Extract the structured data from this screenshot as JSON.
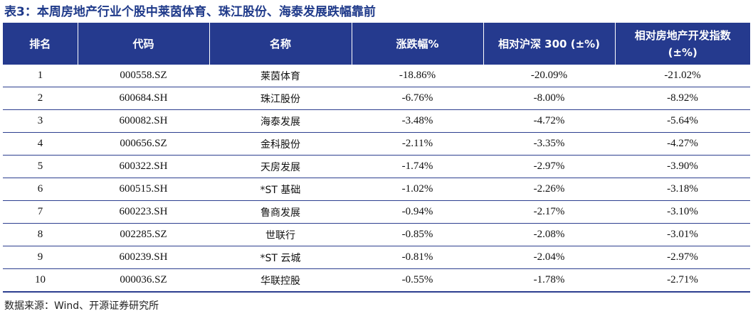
{
  "title": "表3：本周房地产行业个股中莱茵体育、珠江股份、海泰发展跌幅靠前",
  "table": {
    "headers": [
      "排名",
      "代码",
      "名称",
      "涨跌幅%",
      "相对沪深 300 (±%)",
      "相对房地产开发指数 (±%)"
    ],
    "rows": [
      {
        "rank": "1",
        "code": "000558.SZ",
        "name": "莱茵体育",
        "change": "-18.86%",
        "rel_hs300": "-20.09%",
        "rel_index": "-21.02%"
      },
      {
        "rank": "2",
        "code": "600684.SH",
        "name": "珠江股份",
        "change": "-6.76%",
        "rel_hs300": "-8.00%",
        "rel_index": "-8.92%"
      },
      {
        "rank": "3",
        "code": "600082.SH",
        "name": "海泰发展",
        "change": "-3.48%",
        "rel_hs300": "-4.72%",
        "rel_index": "-5.64%"
      },
      {
        "rank": "4",
        "code": "000656.SZ",
        "name": "金科股份",
        "change": "-2.11%",
        "rel_hs300": "-3.35%",
        "rel_index": "-4.27%"
      },
      {
        "rank": "5",
        "code": "600322.SH",
        "name": "天房发展",
        "change": "-1.74%",
        "rel_hs300": "-2.97%",
        "rel_index": "-3.90%"
      },
      {
        "rank": "6",
        "code": "600515.SH",
        "name": "*ST 基础",
        "change": "-1.02%",
        "rel_hs300": "-2.26%",
        "rel_index": "-3.18%"
      },
      {
        "rank": "7",
        "code": "600223.SH",
        "name": "鲁商发展",
        "change": "-0.94%",
        "rel_hs300": "-2.17%",
        "rel_index": "-3.10%"
      },
      {
        "rank": "8",
        "code": "002285.SZ",
        "name": "世联行",
        "change": "-0.85%",
        "rel_hs300": "-2.08%",
        "rel_index": "-3.01%"
      },
      {
        "rank": "9",
        "code": "600239.SH",
        "name": "*ST 云城",
        "change": "-0.81%",
        "rel_hs300": "-2.04%",
        "rel_index": "-2.97%"
      },
      {
        "rank": "10",
        "code": "000036.SZ",
        "name": "华联控股",
        "change": "-0.55%",
        "rel_hs300": "-1.78%",
        "rel_index": "-2.71%"
      }
    ]
  },
  "source": "数据来源：Wind、开源证券研究所"
}
